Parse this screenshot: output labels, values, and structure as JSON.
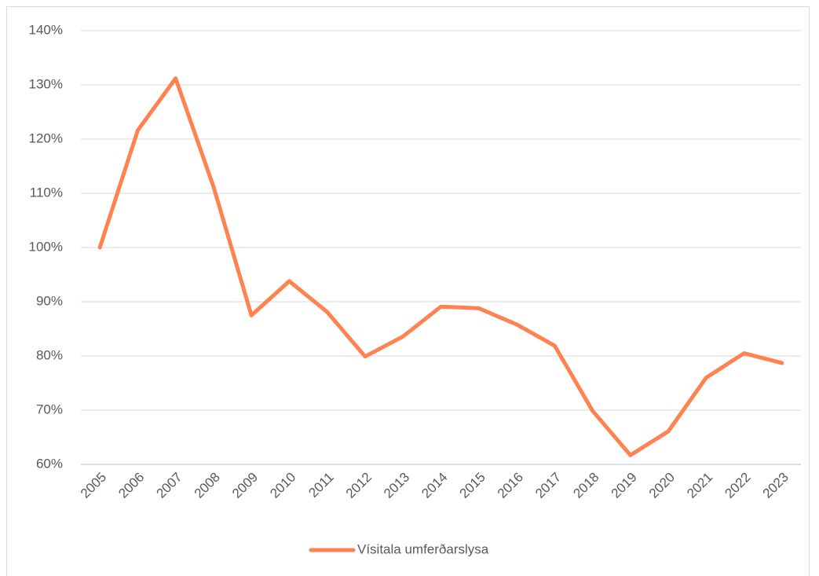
{
  "chart_data": {
    "type": "line",
    "categories": [
      "2005",
      "2006",
      "2007",
      "2008",
      "2009",
      "2010",
      "2011",
      "2012",
      "2013",
      "2014",
      "2015",
      "2016",
      "2017",
      "2018",
      "2019",
      "2020",
      "2021",
      "2022",
      "2023"
    ],
    "series": [
      {
        "name": "Vísitala umferðarslysa",
        "color": "#ff8250",
        "values": [
          100,
          121.6,
          131.2,
          111.2,
          87.5,
          93.8,
          88.1,
          79.9,
          83.6,
          89.1,
          88.8,
          85.8,
          81.9,
          69.9,
          61.7,
          66.1,
          76,
          80.5,
          78.7
        ]
      }
    ],
    "ylim": [
      60,
      140
    ],
    "yticks": [
      {
        "value": 60,
        "label": "60%"
      },
      {
        "value": 70,
        "label": "70%"
      },
      {
        "value": 80,
        "label": "80%"
      },
      {
        "value": 90,
        "label": "90%"
      },
      {
        "value": 100,
        "label": "100%"
      },
      {
        "value": 110,
        "label": "110%"
      },
      {
        "value": 120,
        "label": "120%"
      },
      {
        "value": 130,
        "label": "130%"
      },
      {
        "value": 140,
        "label": "140%"
      }
    ],
    "grid": true,
    "legend": "bottom"
  }
}
